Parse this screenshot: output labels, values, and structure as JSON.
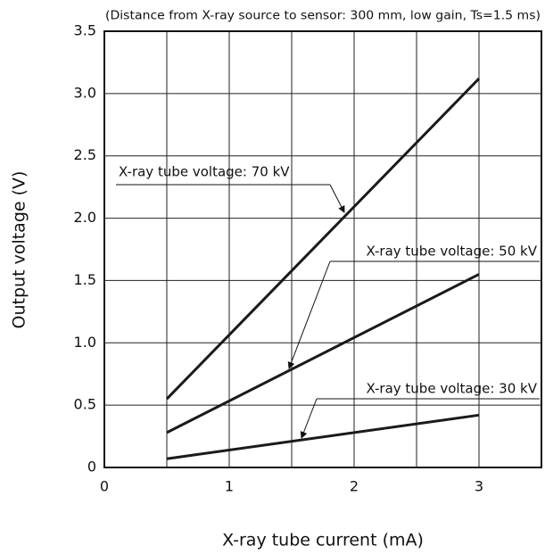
{
  "chart_data": {
    "type": "line",
    "subtitle": "(Distance from X-ray source to sensor: 300 mm, low gain, Ts=1.5 ms)",
    "xlabel": "X-ray tube current (mA)",
    "ylabel": "Output voltage (V)",
    "x": [
      0.5,
      3
    ],
    "series": [
      {
        "name": "X-ray tube voltage: 70 kV",
        "color": "#1a1a1a",
        "values": [
          0.55,
          3.12
        ]
      },
      {
        "name": "X-ray tube voltage: 50 kV",
        "color": "#1a1a1a",
        "values": [
          0.28,
          1.55
        ]
      },
      {
        "name": "X-ray tube voltage: 30 kV",
        "color": "#1a1a1a",
        "values": [
          0.07,
          0.42
        ]
      }
    ],
    "xlim": [
      0,
      3.5
    ],
    "xticks": [
      0,
      1,
      2,
      3
    ],
    "xgrid": [
      0.5,
      1,
      1.5,
      2,
      2.5,
      3
    ],
    "ylim": [
      0,
      3.5
    ],
    "yticks": [
      0,
      {
        "value": 0.5,
        "label": "0.5"
      },
      {
        "value": 1,
        "label": "1.0"
      },
      {
        "value": 1.5,
        "label": "1.5"
      },
      {
        "value": 2,
        "label": "2.0"
      },
      {
        "value": 2.5,
        "label": "2.5"
      },
      {
        "value": 3,
        "label": "3.0"
      },
      {
        "value": 3.5,
        "label": "3.5"
      }
    ],
    "grid": true
  }
}
